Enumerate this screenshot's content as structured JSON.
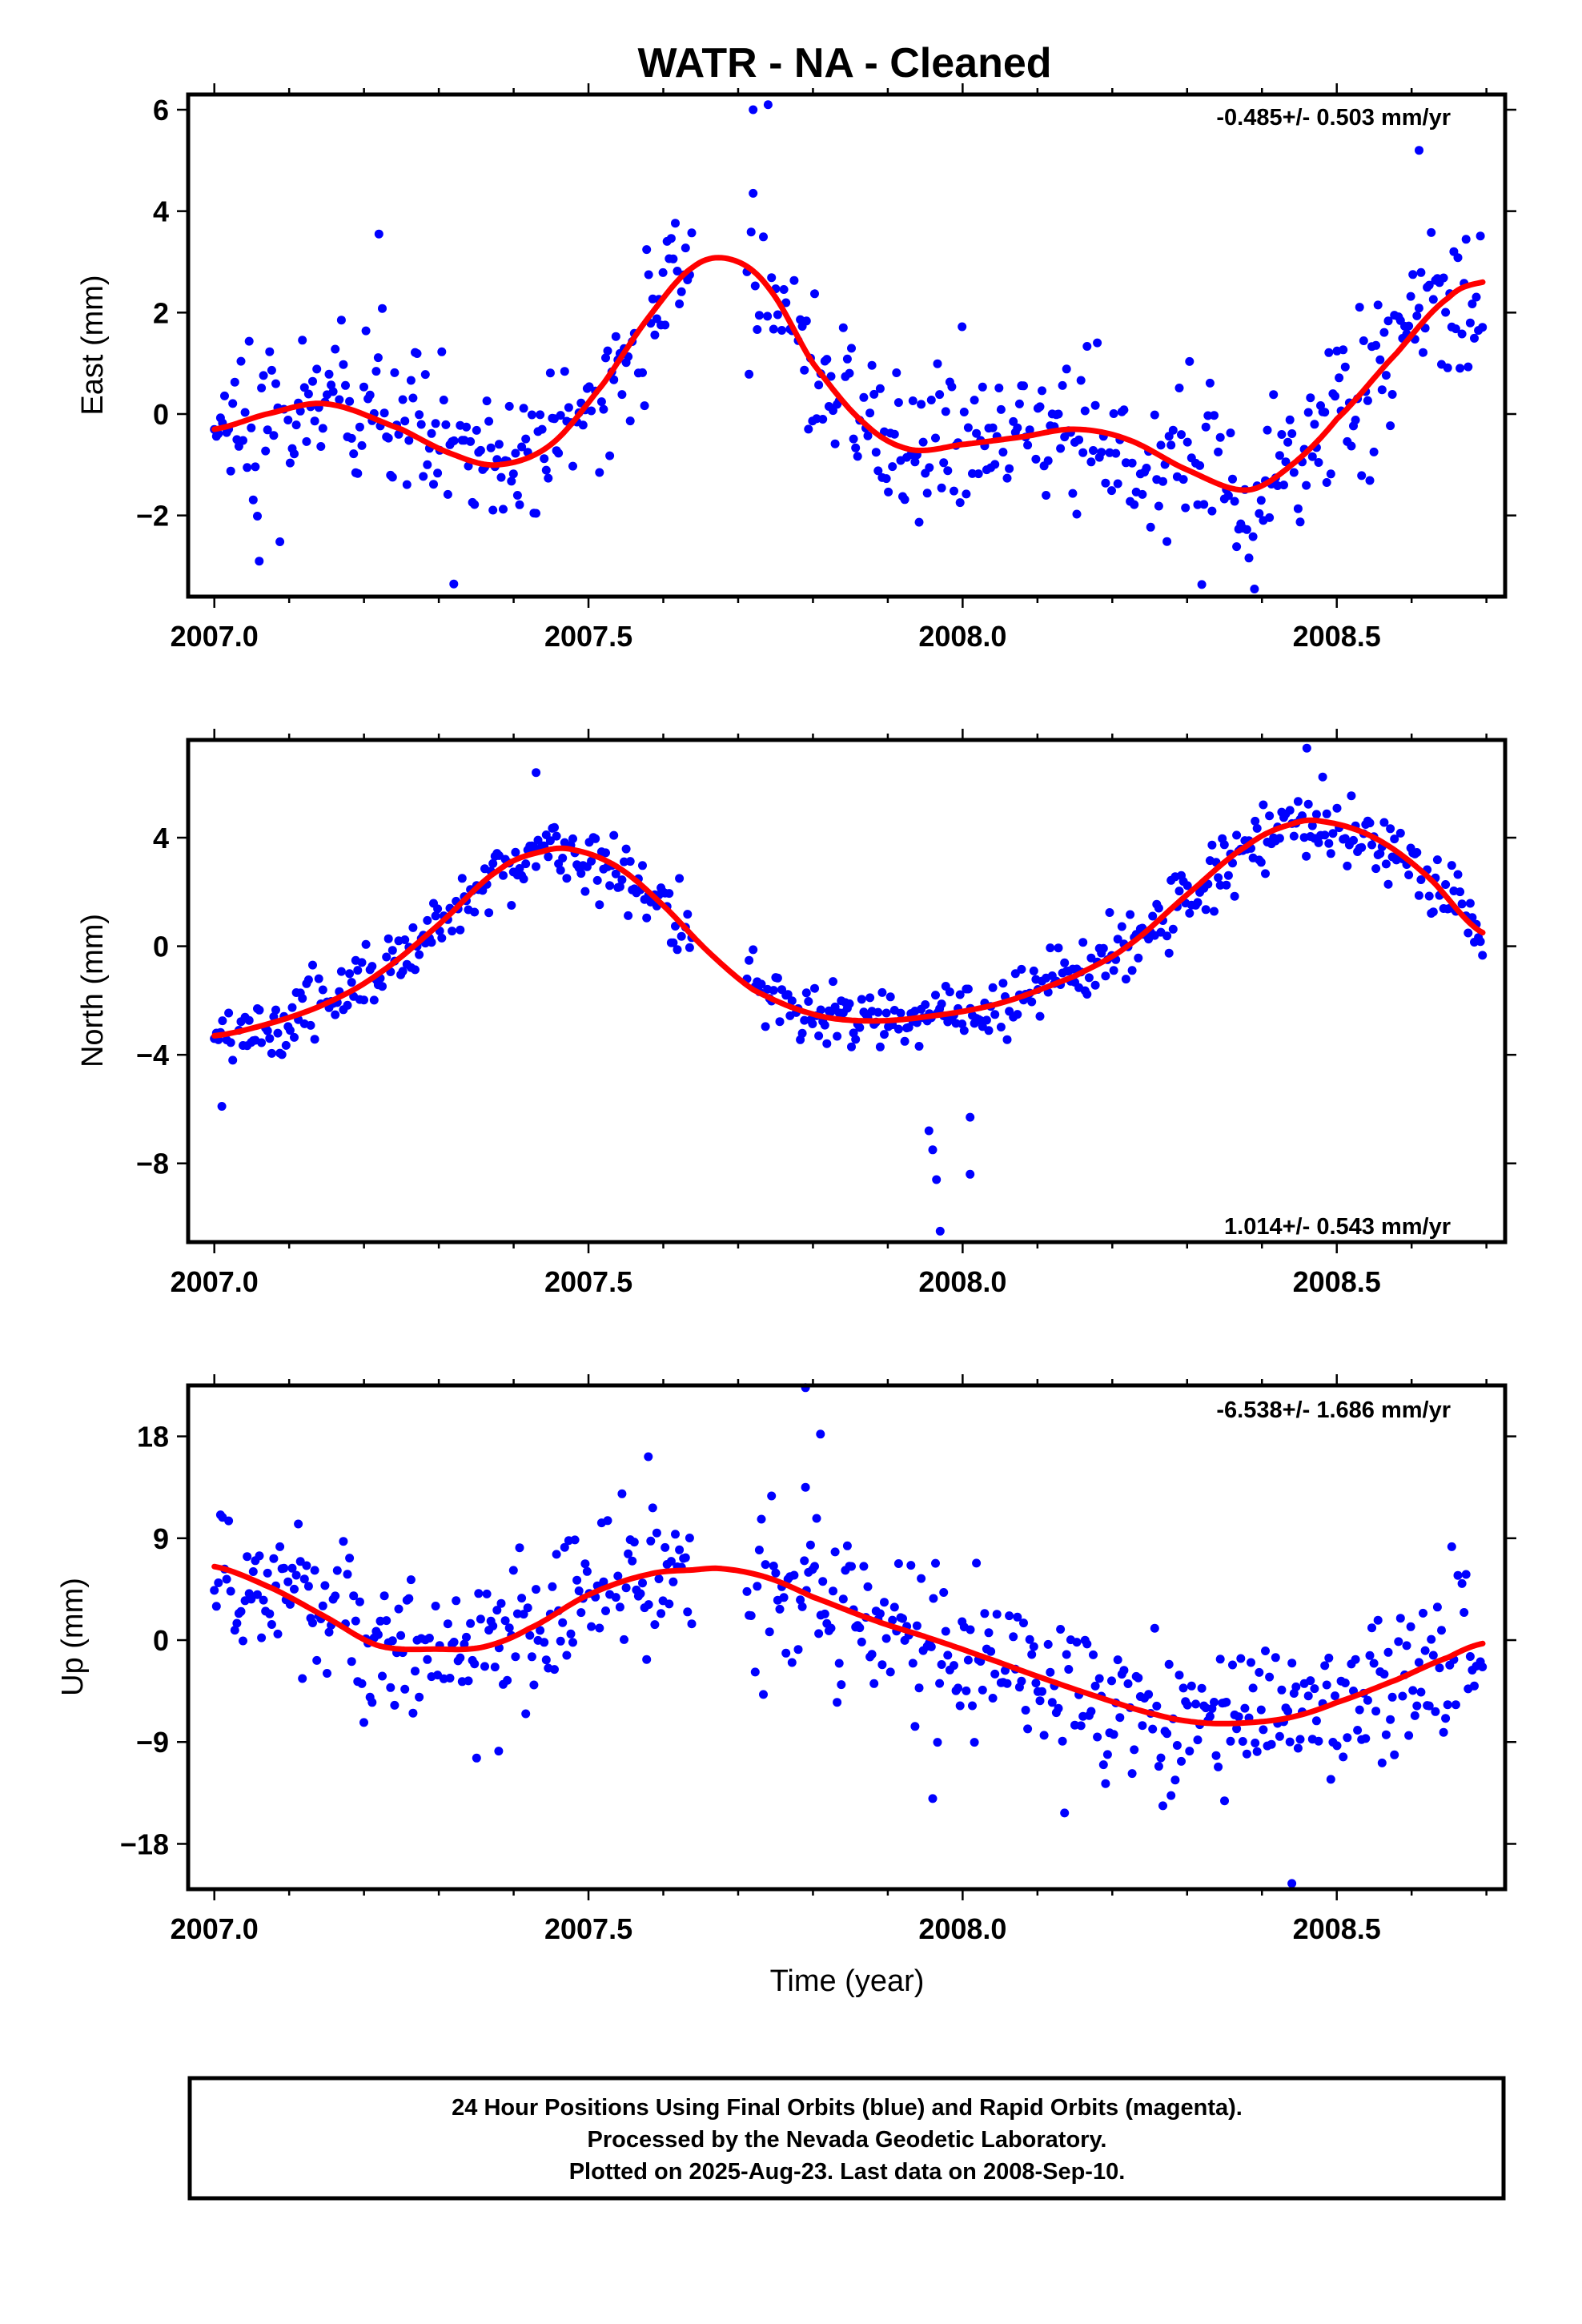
{
  "figure": {
    "title": "WATR  - NA - Cleaned",
    "xlabel": "Time (year)",
    "note_lines": [
      "24 Hour Positions Using Final Orbits (blue) and Rapid Orbits (magenta).",
      "Processed by the Nevada Geodetic Laboratory.",
      "Plotted on 2025-Aug-23. Last data on 2008-Sep-10."
    ]
  },
  "colors": {
    "points": "#0000ff",
    "fit": "#ff0000",
    "axes": "#000000"
  },
  "chart_data": [
    {
      "type": "scatter",
      "key": "east",
      "ylabel": "East (mm)",
      "rate_text": "-0.485+/- 0.503 mm/yr",
      "rate_position": "top-right",
      "xlim": [
        2006.965,
        2008.725
      ],
      "ylim": [
        -3.6,
        6.3
      ],
      "xticks": [
        2007.0,
        2007.5,
        2008.0,
        2008.5
      ],
      "xtick_labels": [
        "2007.0",
        "2007.5",
        "2008.0",
        "2008.5"
      ],
      "yticks": [
        -2,
        0,
        2,
        4,
        6
      ],
      "ytick_labels": [
        "−2",
        "0",
        "2",
        "4",
        "6"
      ],
      "gap": [
        2007.64,
        2007.71
      ],
      "outliers": [
        [
          2007.06,
          -2.9
        ],
        [
          2007.32,
          -3.35
        ],
        [
          2007.72,
          6.0
        ],
        [
          2007.74,
          6.1
        ],
        [
          2007.22,
          3.55
        ],
        [
          2008.61,
          5.2
        ],
        [
          2008.39,
          -3.45
        ]
      ],
      "fit": {
        "x": [
          2007.0,
          2007.07,
          2007.15,
          2007.25,
          2007.32,
          2007.38,
          2007.45,
          2007.52,
          2007.58,
          2007.64,
          2007.69,
          2007.74,
          2007.8,
          2007.87,
          2007.93,
          2008.0,
          2008.08,
          2008.15,
          2008.22,
          2008.3,
          2008.38,
          2008.44,
          2008.5,
          2008.58,
          2008.65,
          2008.695
        ],
        "y": [
          -0.3,
          0.0,
          0.2,
          -0.3,
          -0.8,
          -1.0,
          -0.6,
          0.6,
          1.9,
          2.9,
          3.05,
          2.5,
          1.0,
          -0.2,
          -0.7,
          -0.6,
          -0.45,
          -0.3,
          -0.5,
          -1.1,
          -1.5,
          -1.0,
          -0.1,
          1.2,
          2.3,
          2.6
        ]
      }
    },
    {
      "type": "scatter",
      "key": "north",
      "ylabel": "North (mm)",
      "rate_text": "1.014+/- 0.543 mm/yr",
      "rate_position": "bottom-right",
      "xlim": [
        2006.965,
        2008.725
      ],
      "ylim": [
        -10.9,
        7.6
      ],
      "xticks": [
        2007.0,
        2007.5,
        2008.0,
        2008.5
      ],
      "xtick_labels": [
        "2007.0",
        "2007.5",
        "2008.0",
        "2008.5"
      ],
      "yticks": [
        -8,
        -4,
        0,
        4
      ],
      "ytick_labels": [
        "−8",
        "−4",
        "0",
        "4"
      ],
      "gap": [
        2007.64,
        2007.71
      ],
      "outliers": [
        [
          2007.01,
          -5.9
        ],
        [
          2007.955,
          -6.8
        ],
        [
          2007.96,
          -7.5
        ],
        [
          2007.965,
          -8.6
        ],
        [
          2007.97,
          -10.5
        ],
        [
          2008.01,
          -6.3
        ],
        [
          2008.01,
          -8.4
        ],
        [
          2007.43,
          6.4
        ],
        [
          2008.46,
          7.3
        ]
      ],
      "fit": {
        "x": [
          2007.0,
          2007.08,
          2007.15,
          2007.22,
          2007.3,
          2007.38,
          2007.44,
          2007.48,
          2007.54,
          2007.6,
          2007.66,
          2007.72,
          2007.8,
          2007.87,
          2007.95,
          2008.05,
          2008.15,
          2008.22,
          2008.3,
          2008.38,
          2008.44,
          2008.48,
          2008.55,
          2008.62,
          2008.695
        ],
        "y": [
          -3.3,
          -2.8,
          -2.1,
          -1.0,
          0.8,
          2.8,
          3.5,
          3.55,
          2.9,
          1.5,
          -0.2,
          -1.6,
          -2.5,
          -2.75,
          -2.6,
          -2.1,
          -1.1,
          0.0,
          1.9,
          3.7,
          4.5,
          4.6,
          4.0,
          2.6,
          0.5
        ]
      }
    },
    {
      "type": "scatter",
      "key": "up",
      "ylabel": "Up (mm)",
      "rate_text": "-6.538+/- 1.686 mm/yr",
      "rate_position": "top-right",
      "xlim": [
        2006.965,
        2008.725
      ],
      "ylim": [
        -22.0,
        22.5
      ],
      "xticks": [
        2007.0,
        2007.5,
        2008.0,
        2008.5
      ],
      "xtick_labels": [
        "2007.0",
        "2007.5",
        "2008.0",
        "2008.5"
      ],
      "yticks": [
        -18,
        -9,
        0,
        9,
        18
      ],
      "ytick_labels": [
        "−18",
        "−9",
        "0",
        "9",
        "18"
      ],
      "gap": [
        2007.64,
        2007.71
      ],
      "outliers": [
        [
          2007.79,
          22.3
        ],
        [
          2007.79,
          13.5
        ],
        [
          2007.81,
          18.2
        ],
        [
          2008.44,
          -21.5
        ],
        [
          2007.96,
          -14.0
        ],
        [
          2007.38,
          -9.8
        ],
        [
          2008.35,
          -14.2
        ],
        [
          2007.58,
          16.2
        ]
      ],
      "fit": {
        "x": [
          2007.0,
          2007.08,
          2007.15,
          2007.22,
          2007.3,
          2007.36,
          2007.42,
          2007.5,
          2007.58,
          2007.64,
          2007.68,
          2007.74,
          2007.8,
          2007.88,
          2007.95,
          2008.02,
          2008.1,
          2008.18,
          2008.26,
          2008.32,
          2008.38,
          2008.44,
          2008.5,
          2008.58,
          2008.65,
          2008.695
        ],
        "y": [
          6.5,
          4.5,
          2.0,
          -0.5,
          -0.8,
          -0.6,
          1.0,
          4.0,
          5.8,
          6.2,
          6.3,
          5.5,
          3.8,
          1.8,
          0.3,
          -1.3,
          -3.2,
          -5.0,
          -6.6,
          -7.3,
          -7.3,
          -6.8,
          -5.5,
          -3.5,
          -1.5,
          -0.3
        ]
      }
    }
  ]
}
